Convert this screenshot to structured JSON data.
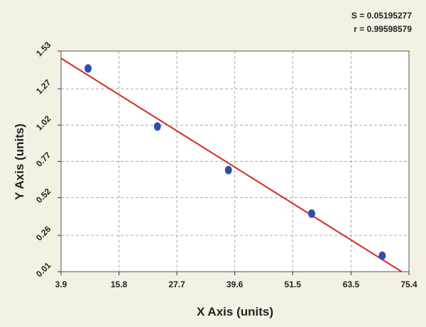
{
  "chart_data": {
    "type": "scatter",
    "x_label": "X Axis (units)",
    "y_label": "Y Axis (units)",
    "annotations": [
      "S = 0.05195277",
      "r = 0.99598579"
    ],
    "series": [
      {
        "color": "#2f4fa6",
        "x": [
          9.45,
          23.7,
          38.3,
          55.4,
          69.9
        ],
        "values": [
          1.41,
          1.01,
          0.71,
          0.41,
          0.12
        ]
      }
    ],
    "fit_line": {
      "color": "#d42a24",
      "x": [
        3.9,
        73.9
      ],
      "values": [
        1.48,
        0.01
      ]
    },
    "xlim": [
      3.9,
      75.4
    ],
    "xticks": [
      3.9,
      15.8,
      27.7,
      39.6,
      51.5,
      63.5,
      75.4
    ],
    "ylim": [
      0.01,
      1.53
    ],
    "yticks": [
      0.01,
      0.26,
      0.52,
      0.77,
      1.02,
      1.27,
      1.53
    ],
    "grid": true
  }
}
